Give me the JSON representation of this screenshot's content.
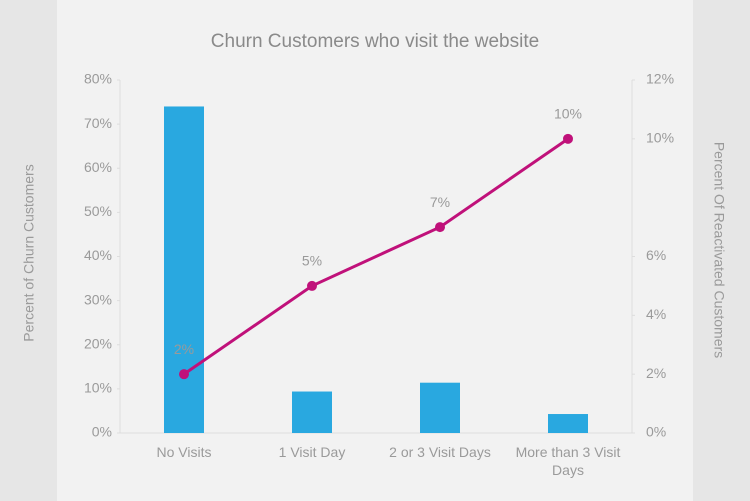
{
  "chart_data": {
    "type": "bar-line",
    "title": "Churn Customers who visit the website",
    "y_label": "Percent of Churn Customers",
    "y2_label": "Percent Of Reactivated Customers",
    "categories": [
      "No Visits",
      "1 Visit Day",
      "2 or 3 Visit Days",
      "More than 3 Visit Days"
    ],
    "ylim": [
      0,
      80
    ],
    "yticks": [
      {
        "value": 0,
        "label": "0%"
      },
      {
        "value": 10,
        "label": "10%"
      },
      {
        "value": 20,
        "label": "20%"
      },
      {
        "value": 30,
        "label": "30%"
      },
      {
        "value": 40,
        "label": "40%"
      },
      {
        "value": 50,
        "label": "50%"
      },
      {
        "value": 60,
        "label": "60%"
      },
      {
        "value": 70,
        "label": "70%"
      },
      {
        "value": 80,
        "label": "80%"
      }
    ],
    "y2lim": [
      0,
      12
    ],
    "y2ticks": [
      {
        "value": 0,
        "label": "0%"
      },
      {
        "value": 2,
        "label": "2%"
      },
      {
        "value": 4,
        "label": "4%"
      },
      {
        "value": 6,
        "label": "6%"
      },
      {
        "value": 10,
        "label": "10%"
      },
      {
        "value": 12,
        "label": "12%"
      }
    ],
    "series": [
      {
        "type": "bar",
        "color": "#29a8e0",
        "values": [
          74,
          9.4,
          11.4,
          4.3
        ]
      },
      {
        "type": "line",
        "axis": "y2",
        "color": "#c0117a",
        "values": [
          2,
          5,
          7,
          10
        ],
        "value_labels": [
          "2%",
          "5%",
          "7%",
          "10%"
        ]
      }
    ]
  }
}
